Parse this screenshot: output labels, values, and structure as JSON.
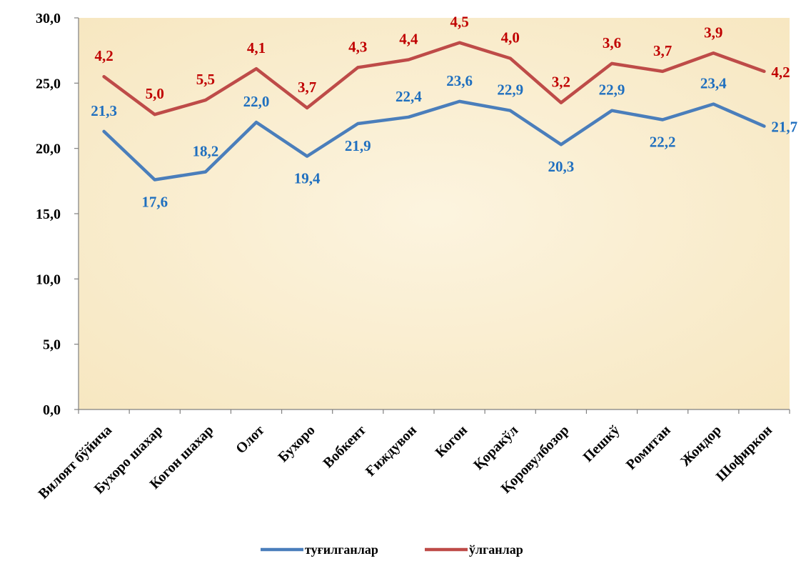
{
  "chart_data": {
    "type": "line",
    "categories": [
      "Вилоят бўйича",
      "Бухоро шахар",
      "Когон шахар",
      "Олот",
      "Бухоро",
      "Вобкент",
      "Ғиждувон",
      "Когон",
      "Қоракўл",
      "Қоровулбозор",
      "Пешкў",
      "Ромитан",
      "Жондор",
      "Шофиркон"
    ],
    "series": [
      {
        "name": "туғилганлар",
        "color": "#4a7ebb",
        "label_color": "#1f6fbf",
        "values": [
          21.3,
          17.6,
          18.2,
          22.0,
          19.4,
          21.9,
          22.4,
          23.6,
          22.9,
          20.3,
          22.9,
          22.2,
          23.4,
          21.7
        ],
        "labels": [
          "21,3",
          "17,6",
          "18,2",
          "22,0",
          "19,4",
          "21,9",
          "22,4",
          "23,6",
          "22,9",
          "20,3",
          "22,9",
          "22,2",
          "23,4",
          "21,7"
        ]
      },
      {
        "name": "ўлганлар",
        "color": "#be4b48",
        "label_color": "#c00000",
        "values": [
          25.5,
          22.6,
          23.7,
          26.1,
          23.1,
          26.2,
          26.8,
          28.1,
          26.9,
          23.5,
          26.5,
          25.9,
          27.3,
          25.9
        ],
        "labels": [
          "4,2",
          "5,0",
          "5,5",
          "4,1",
          "3,7",
          "4,3",
          "4,4",
          "4,5",
          "4,0",
          "3,2",
          "3,6",
          "3,7",
          "3,9",
          "4,2"
        ]
      }
    ],
    "ylim": [
      0,
      30
    ],
    "yticks": [
      "0,0",
      "5,0",
      "10,0",
      "15,0",
      "20,0",
      "25,0",
      "30,0"
    ],
    "title": "",
    "xlabel": "",
    "ylabel": "",
    "legend_position": "bottom",
    "grid": false,
    "plot_background": "#fbf1d9"
  }
}
